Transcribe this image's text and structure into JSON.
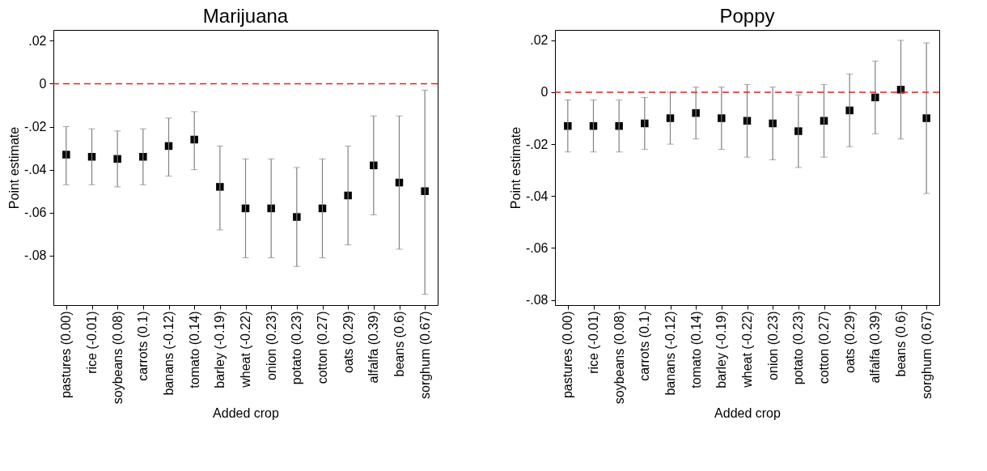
{
  "chart_data": [
    {
      "type": "scatter",
      "title": "Marijuana",
      "xlabel": "Added crop",
      "ylabel": "Point estimate",
      "categories": [
        "pastures (0.00)",
        "rice (-0.01)",
        "soybeans (0.08)",
        "carrots (0.1)",
        "banans (-0.12)",
        "tomato (0.14)",
        "barley (-0.19)",
        "wheat (-0.22)",
        "onion (0.23)",
        "potato (0.23)",
        "cotton (0.27)",
        "oats (0.29)",
        "alfalfa (0.39)",
        "beans (0.6)",
        "sorghum (0.67)"
      ],
      "series": [
        {
          "color": "#000000",
          "values": [
            -0.033,
            -0.034,
            -0.035,
            -0.034,
            -0.029,
            -0.026,
            -0.048,
            -0.058,
            -0.058,
            -0.062,
            -0.058,
            -0.052,
            -0.038,
            -0.046,
            -0.05
          ],
          "errors": [
            [
              -0.047,
              -0.02
            ],
            [
              -0.047,
              -0.021
            ],
            [
              -0.048,
              -0.022
            ],
            [
              -0.047,
              -0.021
            ],
            [
              -0.043,
              -0.016
            ],
            [
              -0.04,
              -0.013
            ],
            [
              -0.068,
              -0.029
            ],
            [
              -0.081,
              -0.035
            ],
            [
              -0.081,
              -0.035
            ],
            [
              -0.085,
              -0.039
            ],
            [
              -0.081,
              -0.035
            ],
            [
              -0.075,
              -0.029
            ],
            [
              -0.061,
              -0.015
            ],
            [
              -0.077,
              -0.015
            ],
            [
              -0.098,
              -0.003
            ]
          ]
        }
      ],
      "marker": "square",
      "ylim": [
        -0.103,
        0.025
      ],
      "yticks": [
        {
          "value": 0.02,
          "label": ".02"
        },
        0,
        {
          "value": -0.02,
          "label": "-.02"
        },
        {
          "value": -0.04,
          "label": "-.04"
        },
        {
          "value": -0.06,
          "label": "-.06"
        },
        {
          "value": -0.08,
          "label": "-.08"
        }
      ],
      "ref_lines": [
        {
          "axis": "y",
          "value": 0,
          "color": "#e8211c",
          "line_style": "dashed"
        }
      ],
      "grid": false
    },
    {
      "type": "scatter",
      "title": "Poppy",
      "xlabel": "Added crop",
      "ylabel": "Point estimate",
      "categories": [
        "pastures (0.00)",
        "rice (-0.01)",
        "soybeans (0.08)",
        "carrots (0.1)",
        "banans (-0.12)",
        "tomato (0.14)",
        "barley (-0.19)",
        "wheat (-0.22)",
        "onion (0.23)",
        "potato (0.23)",
        "cotton (0.27)",
        "oats (0.29)",
        "alfalfa (0.39)",
        "beans (0.6)",
        "sorghum (0.67)"
      ],
      "series": [
        {
          "color": "#000000",
          "values": [
            -0.013,
            -0.013,
            -0.013,
            -0.012,
            -0.01,
            -0.008,
            -0.01,
            -0.011,
            -0.012,
            -0.015,
            -0.011,
            -0.007,
            -0.002,
            0.001,
            -0.01
          ],
          "errors": [
            [
              -0.023,
              -0.003
            ],
            [
              -0.023,
              -0.003
            ],
            [
              -0.023,
              -0.003
            ],
            [
              -0.022,
              -0.002
            ],
            [
              -0.02,
              0.0
            ],
            [
              -0.018,
              0.002
            ],
            [
              -0.022,
              0.002
            ],
            [
              -0.025,
              0.003
            ],
            [
              -0.026,
              0.002
            ],
            [
              -0.029,
              -0.001
            ],
            [
              -0.025,
              0.003
            ],
            [
              -0.021,
              0.007
            ],
            [
              -0.016,
              0.012
            ],
            [
              -0.018,
              0.02
            ],
            [
              -0.039,
              0.019
            ]
          ]
        }
      ],
      "marker": "square",
      "ylim": [
        -0.082,
        0.024
      ],
      "yticks": [
        {
          "value": 0.02,
          "label": ".02"
        },
        0,
        {
          "value": -0.02,
          "label": "-.02"
        },
        {
          "value": -0.04,
          "label": "-.04"
        },
        {
          "value": -0.06,
          "label": "-.06"
        },
        {
          "value": -0.08,
          "label": "-.08"
        }
      ],
      "ref_lines": [
        {
          "axis": "y",
          "value": 0,
          "color": "#e8211c",
          "line_style": "dashed"
        }
      ],
      "grid": false
    }
  ]
}
